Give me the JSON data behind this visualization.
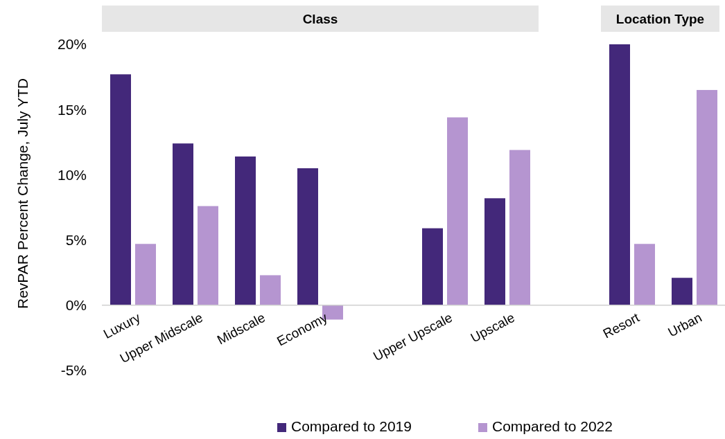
{
  "chart_data": {
    "type": "bar",
    "ylabel": "RevPAR Percent Change, July YTD",
    "categories": [
      "Luxury",
      "Upper Midscale",
      "Midscale",
      "Economy",
      null,
      "Upper Upscale",
      "Upscale",
      null,
      "Resort",
      "Urban"
    ],
    "series": [
      {
        "name": "Compared to 2019",
        "color": "#43287a",
        "values": [
          17.7,
          12.4,
          11.4,
          10.5,
          null,
          5.9,
          8.2,
          null,
          20.0,
          2.1
        ]
      },
      {
        "name": "Compared to 2022",
        "color": "#b595d0",
        "values": [
          4.7,
          7.6,
          2.3,
          -1.1,
          null,
          14.4,
          11.9,
          null,
          4.7,
          16.5
        ]
      }
    ],
    "ylim": [
      -5,
      20
    ],
    "yticks": [
      {
        "value": -5,
        "label": "-5%"
      },
      {
        "value": 0,
        "label": "0%"
      },
      {
        "value": 5,
        "label": "5%"
      },
      {
        "value": 10,
        "label": "10%"
      },
      {
        "value": 15,
        "label": "15%"
      },
      {
        "value": 20,
        "label": "20%"
      }
    ],
    "grid": false,
    "legend": "bottom",
    "annotations": [
      "Class",
      "Location Type"
    ]
  }
}
